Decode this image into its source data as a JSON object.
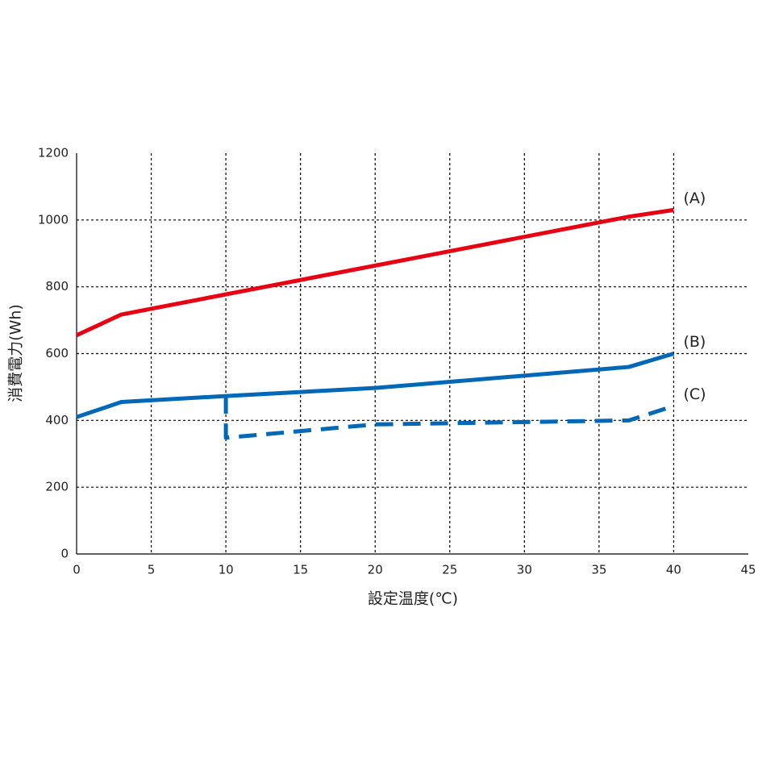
{
  "chart_data": {
    "type": "line",
    "xlabel": "設定温度(℃)",
    "ylabel": "消費電力(Wh)",
    "xlim": [
      0,
      45
    ],
    "xticks": [
      0,
      5,
      10,
      15,
      20,
      25,
      30,
      35,
      40,
      45
    ],
    "ylim": [
      0,
      1200
    ],
    "yticks": [
      0,
      200,
      400,
      600,
      800,
      1000,
      1200
    ],
    "grid": true,
    "series": [
      {
        "name": "(A)",
        "color": "#e60012",
        "dashed": false,
        "x": [
          0,
          3,
          37,
          40
        ],
        "values": [
          655,
          717,
          1010,
          1030
        ]
      },
      {
        "name": "(B)",
        "color": "#0068b7",
        "dashed": false,
        "x": [
          0,
          3,
          10,
          20,
          37,
          40
        ],
        "values": [
          410,
          455,
          473,
          497,
          560,
          600
        ]
      },
      {
        "name": "(C)",
        "color": "#0068b7",
        "dashed": true,
        "x": [
          10,
          10,
          20,
          37,
          40
        ],
        "values": [
          473,
          348,
          388,
          400,
          443
        ]
      }
    ]
  }
}
